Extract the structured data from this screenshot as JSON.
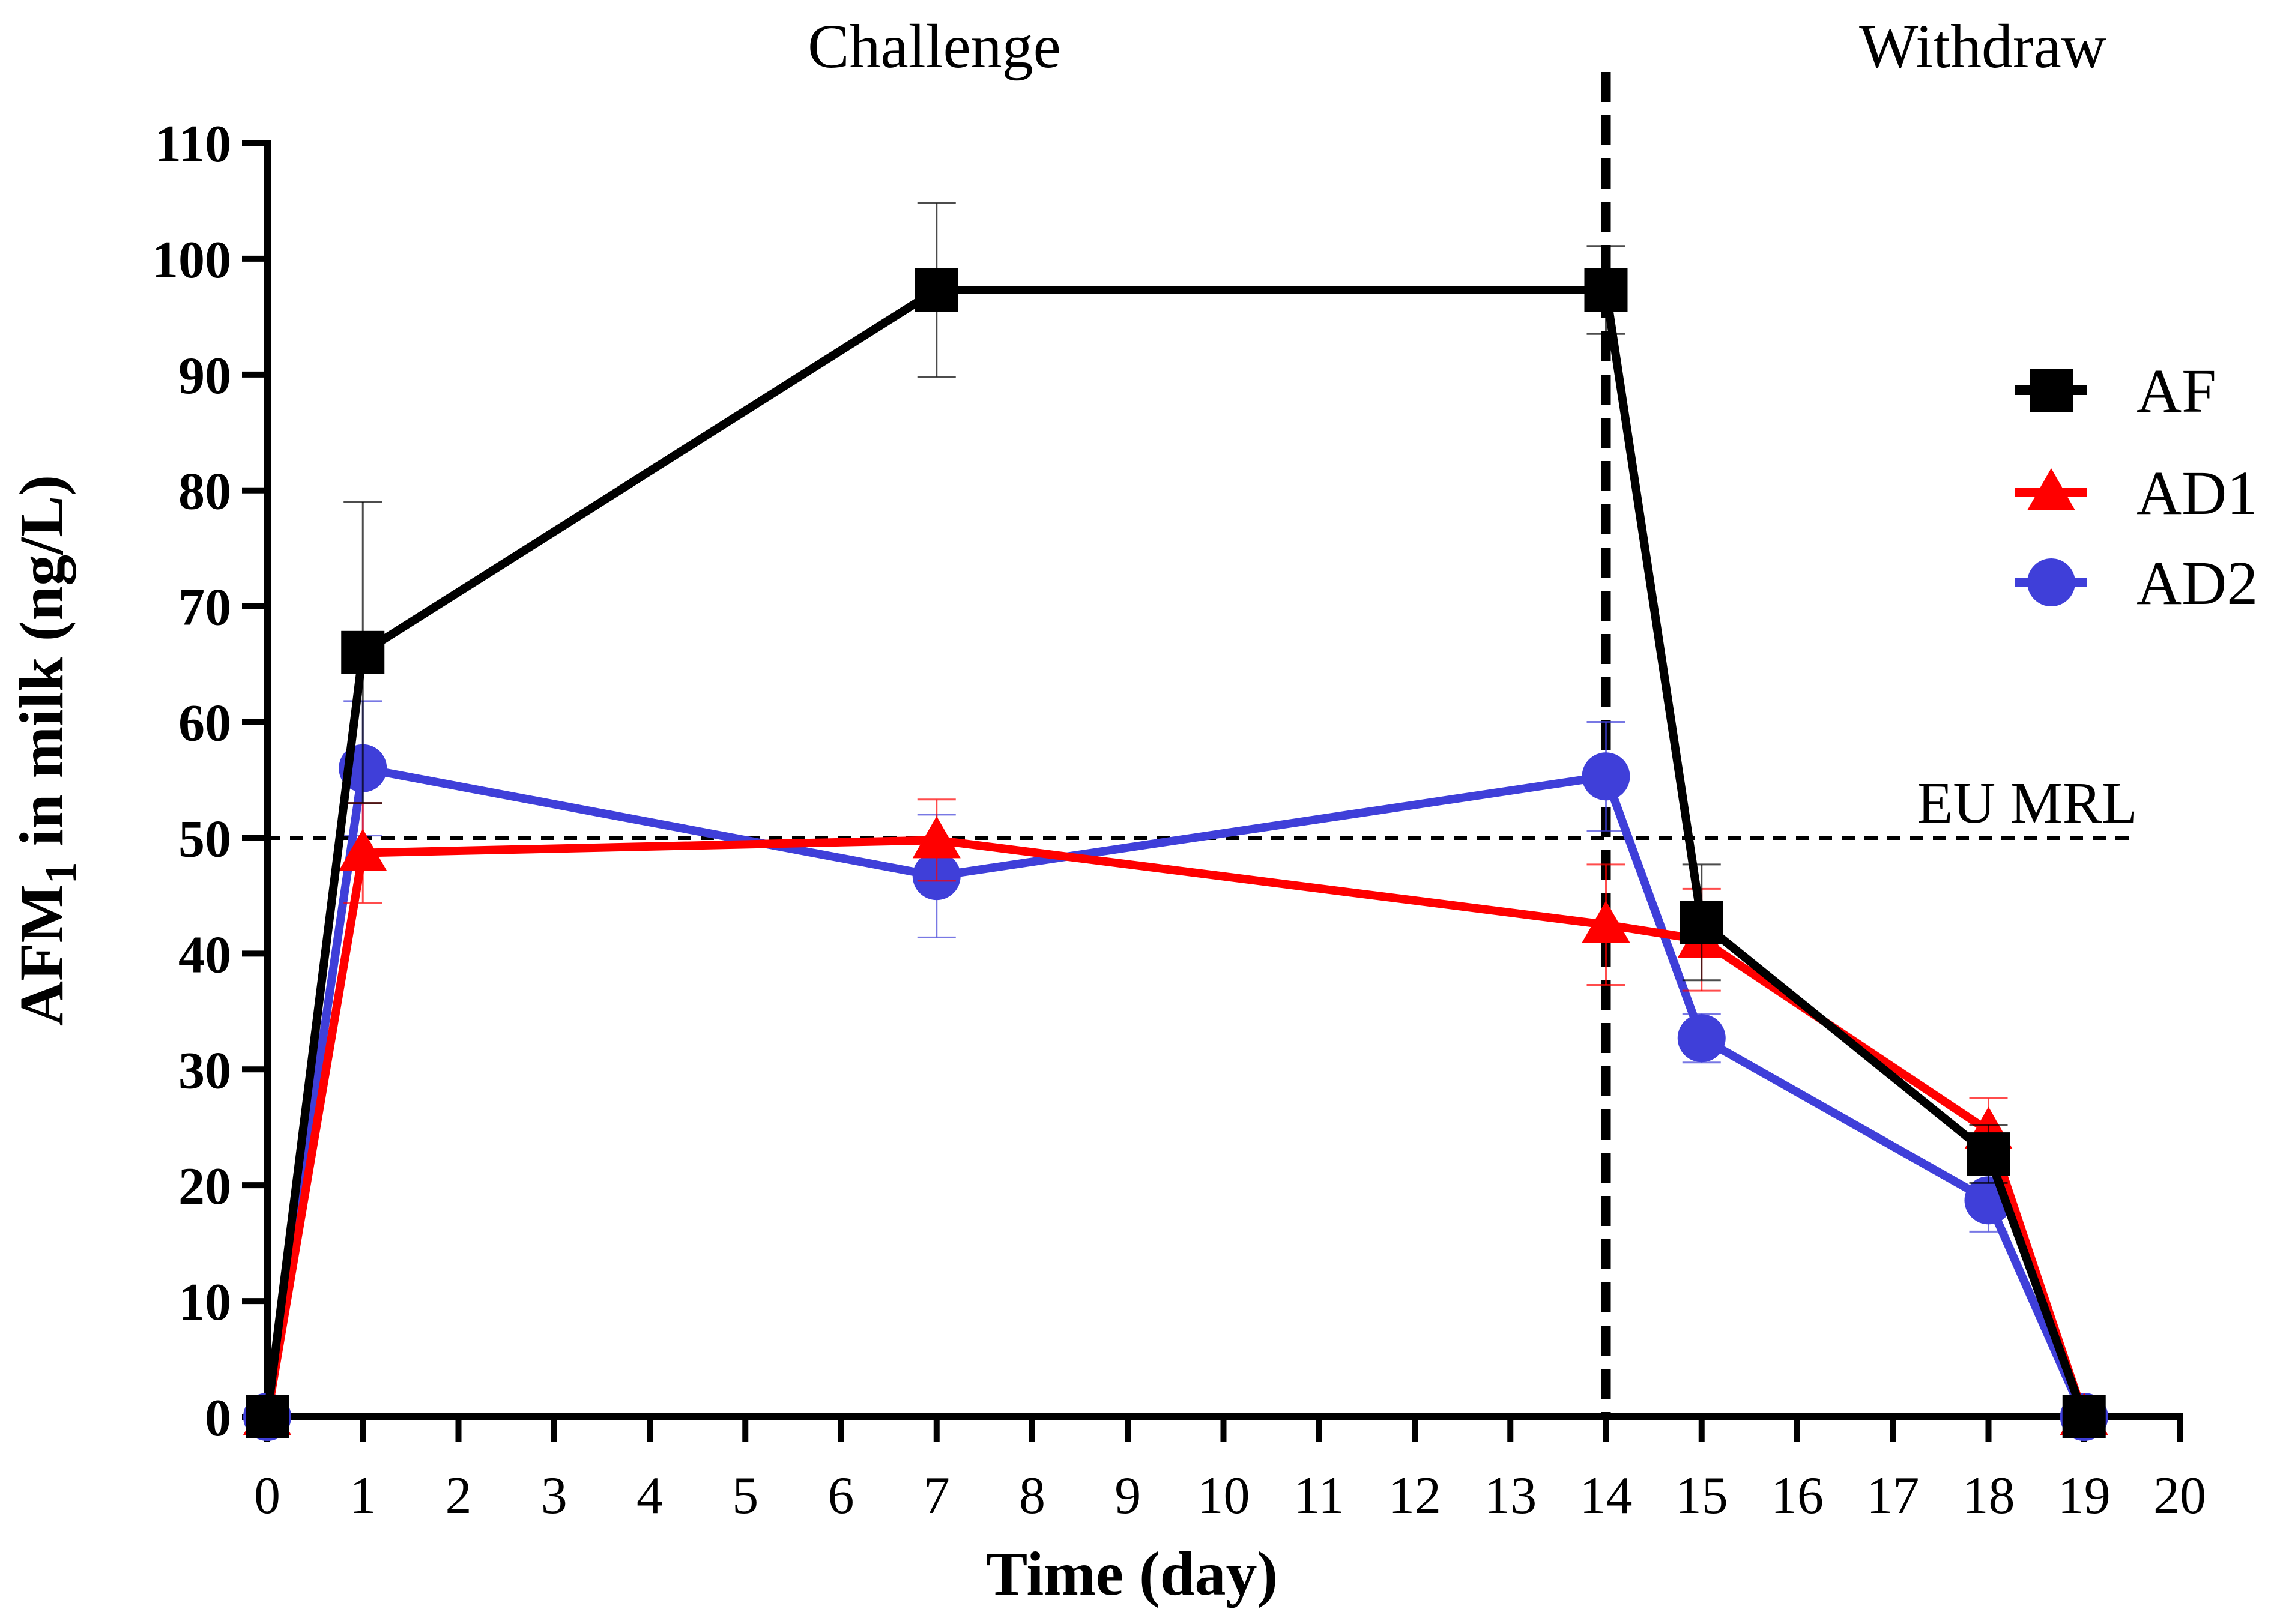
{
  "chart_data": {
    "type": "line",
    "title": "",
    "xlabel": "Time (day)",
    "ylabel": {
      "main": "AFM",
      "subscript": "1",
      "suffix": " in milk (ng/L)"
    },
    "xlim": [
      0,
      20
    ],
    "ylim": [
      0,
      110
    ],
    "x_ticks": [
      0,
      1,
      2,
      3,
      4,
      5,
      6,
      7,
      8,
      9,
      10,
      11,
      12,
      13,
      14,
      15,
      16,
      17,
      18,
      19,
      20
    ],
    "y_ticks": [
      0,
      10,
      20,
      30,
      40,
      50,
      60,
      70,
      80,
      90,
      100,
      110
    ],
    "grid": false,
    "legend_position": "right",
    "phase_labels": {
      "challenge": "Challenge",
      "withdraw": "Withdraw"
    },
    "phase_divider_x": 14,
    "reference_line": {
      "label": "EU MRL",
      "value": 50
    },
    "x": [
      0,
      1,
      7,
      14,
      15,
      18,
      19
    ],
    "series": [
      {
        "name": "AF",
        "marker": "square",
        "color": "#000000",
        "values": [
          0,
          66,
          97.3,
          97.3,
          42.7,
          22.7,
          0
        ],
        "errors": [
          0,
          13,
          7.5,
          3.8,
          5,
          2.5,
          0
        ]
      },
      {
        "name": "AD1",
        "marker": "triangle",
        "color": "#ff0000",
        "values": [
          0,
          48.7,
          49.8,
          42.5,
          41.2,
          24.7,
          0
        ],
        "errors": [
          0,
          4.3,
          3.5,
          5.2,
          4.4,
          2.8,
          0
        ]
      },
      {
        "name": "AD2",
        "marker": "circle",
        "color": "#3f3fd9",
        "values": [
          0,
          56,
          46.7,
          55.3,
          32.7,
          18.7,
          0
        ],
        "errors": [
          0,
          5.8,
          5.3,
          4.7,
          2.1,
          2.7,
          0
        ]
      }
    ]
  }
}
